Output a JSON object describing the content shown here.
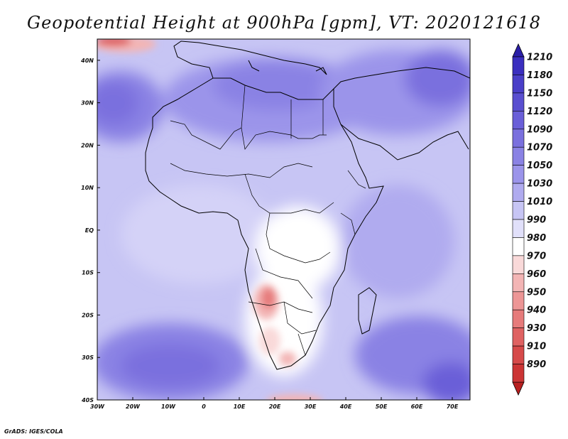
{
  "title": "Geopotential Height at 900hPa [gpm], VT: 2020121618",
  "credit": "GrADS: IGES/COLA",
  "map": {
    "lon_range": [
      -30,
      75
    ],
    "lat_range": [
      -40,
      45
    ],
    "lon_ticks": [
      {
        "value": -30,
        "label": "30W"
      },
      {
        "value": -20,
        "label": "20W"
      },
      {
        "value": -10,
        "label": "10W"
      },
      {
        "value": 0,
        "label": "0"
      },
      {
        "value": 10,
        "label": "10E"
      },
      {
        "value": 20,
        "label": "20E"
      },
      {
        "value": 30,
        "label": "30E"
      },
      {
        "value": 40,
        "label": "40E"
      },
      {
        "value": 50,
        "label": "50E"
      },
      {
        "value": 60,
        "label": "60E"
      },
      {
        "value": 70,
        "label": "70E"
      }
    ],
    "lat_ticks": [
      {
        "value": 40,
        "label": "40N"
      },
      {
        "value": 30,
        "label": "30N"
      },
      {
        "value": 20,
        "label": "20N"
      },
      {
        "value": 10,
        "label": "10N"
      },
      {
        "value": 0,
        "label": "EQ"
      },
      {
        "value": -10,
        "label": "10S"
      },
      {
        "value": -20,
        "label": "20S"
      },
      {
        "value": -30,
        "label": "30S"
      },
      {
        "value": -40,
        "label": "40S"
      }
    ]
  },
  "colorbar": {
    "levels": [
      {
        "label": "1210",
        "color": "#3b2fbf"
      },
      {
        "label": "1180",
        "color": "#4a3fc8"
      },
      {
        "label": "1150",
        "color": "#5a4fd0"
      },
      {
        "label": "1120",
        "color": "#6a5fd8"
      },
      {
        "label": "1090",
        "color": "#7a70de"
      },
      {
        "label": "1070",
        "color": "#8a82e4"
      },
      {
        "label": "1050",
        "color": "#9b94ea"
      },
      {
        "label": "1030",
        "color": "#b0abef"
      },
      {
        "label": "1010",
        "color": "#c7c5f4"
      },
      {
        "label": "990",
        "color": "#e1e0fa"
      },
      {
        "label": "980",
        "color": "#ffffff"
      },
      {
        "label": "970",
        "color": "#f9d9d9"
      },
      {
        "label": "960",
        "color": "#f3b5b5"
      },
      {
        "label": "950",
        "color": "#ed9696"
      },
      {
        "label": "940",
        "color": "#e67b7b"
      },
      {
        "label": "930",
        "color": "#df6262"
      },
      {
        "label": "910",
        "color": "#d64a4a"
      },
      {
        "label": "890",
        "color": "#cc3535"
      }
    ],
    "top_arrow_color": "#2b1fa8",
    "bottom_arrow_color": "#b82020"
  }
}
